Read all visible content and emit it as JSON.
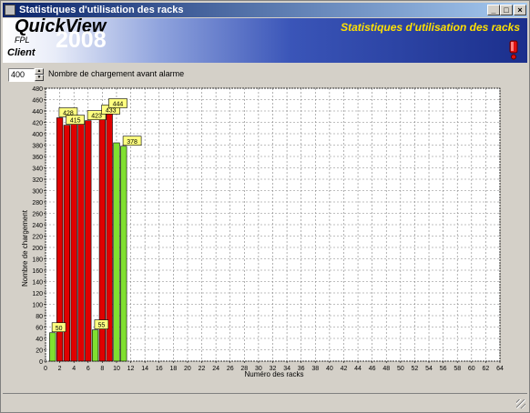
{
  "window": {
    "title": "Statistiques d'utilisation des racks"
  },
  "banner": {
    "brand": "QuickView",
    "brand_sub": "FPL",
    "brand_year": "2008",
    "client": "Client",
    "title": "Statistiques d'utilisation des racks",
    "alarm_icon": "exclamation-icon"
  },
  "alarm_threshold": {
    "value": "400",
    "label": "Nombre de chargement avant alarme"
  },
  "chart_data": {
    "type": "bar",
    "xlabel": "Numéro des racks",
    "ylabel": "Nombre de chargement",
    "xlim": [
      0,
      64
    ],
    "ylim": [
      0,
      480
    ],
    "x_ticks": [
      0,
      2,
      4,
      6,
      8,
      10,
      12,
      14,
      16,
      18,
      20,
      22,
      24,
      26,
      28,
      30,
      32,
      34,
      36,
      38,
      40,
      42,
      44,
      46,
      48,
      50,
      52,
      54,
      56,
      58,
      60,
      62,
      64
    ],
    "y_ticks": [
      0,
      20,
      40,
      60,
      80,
      100,
      120,
      140,
      160,
      180,
      200,
      220,
      240,
      260,
      280,
      300,
      320,
      340,
      360,
      380,
      400,
      420,
      440,
      460,
      480
    ],
    "grid": true,
    "threshold": 400,
    "colors": {
      "above": "#e00000",
      "below": "#80e030",
      "label_bg": "#ffff80"
    },
    "bars": [
      {
        "x": 1,
        "value": 50
      },
      {
        "x": 2,
        "value": 428
      },
      {
        "x": 3,
        "value": 415
      },
      {
        "x": 4,
        "value": 424
      },
      {
        "x": 5,
        "value": 428
      },
      {
        "x": 6,
        "value": 423
      },
      {
        "x": 7,
        "value": 55
      },
      {
        "x": 8,
        "value": 433
      },
      {
        "x": 9,
        "value": 444
      },
      {
        "x": 10,
        "value": 384
      },
      {
        "x": 11,
        "value": 378
      }
    ],
    "data_labels": [
      {
        "x": 1,
        "text": "50"
      },
      {
        "x": 2,
        "text": "428"
      },
      {
        "x": 3,
        "text": "415"
      },
      {
        "x": 6,
        "text": "423"
      },
      {
        "x": 7,
        "text": "55"
      },
      {
        "x": 8,
        "text": "433"
      },
      {
        "x": 9,
        "text": "444"
      },
      {
        "x": 11,
        "text": "378"
      }
    ]
  }
}
